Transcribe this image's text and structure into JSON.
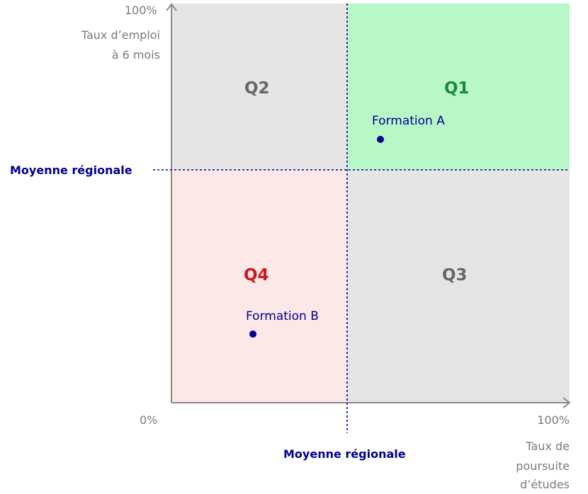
{
  "y_axis": {
    "max_label": "100%",
    "label_line1": "Taux d’emploi",
    "label_line2": "à 6 mois"
  },
  "x_axis": {
    "min_label": "0%",
    "max_label": "100%",
    "label_line1": "Taux de",
    "label_line2": "poursuite",
    "label_line3": "d’études"
  },
  "mean_lines": {
    "horizontal_label": "Moyenne régionale",
    "vertical_label": "Moyenne régionale",
    "color": "#000091"
  },
  "quadrants": {
    "q1": {
      "label": "Q1",
      "color": "#1a8a3a",
      "fill": "#b8f8c6"
    },
    "q2": {
      "label": "Q2",
      "color": "#666666",
      "fill": "#e5e5e5"
    },
    "q3": {
      "label": "Q3",
      "color": "#666666",
      "fill": "#e5e5e5"
    },
    "q4": {
      "label": "Q4",
      "color": "#c9191e",
      "fill": "#fde8e8"
    }
  },
  "points": [
    {
      "label": "Formation A"
    },
    {
      "label": "Formation B"
    }
  ]
}
